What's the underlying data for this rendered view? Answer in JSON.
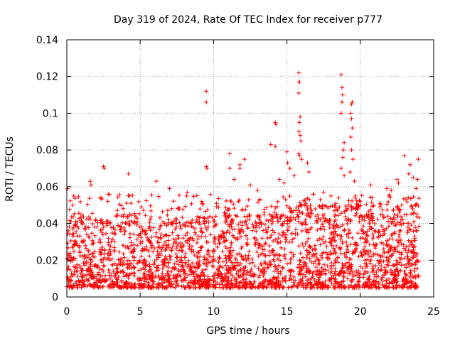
{
  "chart_data": {
    "type": "scatter",
    "title": "Day 319 of 2024, Rate Of TEC Index for receiver p777",
    "xlabel": "GPS time / hours",
    "ylabel": "ROTI / TECUs",
    "xlim": [
      0,
      25
    ],
    "ylim": [
      0,
      0.14
    ],
    "x_ticks": [
      0,
      5,
      10,
      15,
      20,
      25
    ],
    "x_tick_labels": [
      "0",
      "5",
      "10",
      "15",
      "20",
      "25"
    ],
    "y_ticks": [
      0,
      0.02,
      0.04,
      0.06,
      0.08,
      0.1,
      0.12,
      0.14
    ],
    "y_tick_labels": [
      "0",
      "0.02",
      "0.04",
      "0.06",
      "0.08",
      "0.1",
      "0.12",
      "0.14"
    ],
    "grid": true,
    "marker": "+",
    "marker_color": "#ff0000",
    "series": [
      {
        "name": "ROTI",
        "base_range": [
          0.005,
          0.045
        ],
        "gaps_hours": [
          [
            4.7,
            4.75
          ],
          [
            6.0,
            6.05
          ],
          [
            8.8,
            8.85
          ],
          [
            9.8,
            9.9
          ],
          [
            14.6,
            14.65
          ],
          [
            17.8,
            17.85
          ],
          [
            22.0,
            22.05
          ]
        ],
        "points": [
          [
            0.05,
            0.059
          ],
          [
            0.4,
            0.05
          ],
          [
            1.6,
            0.063
          ],
          [
            1.65,
            0.061
          ],
          [
            2.5,
            0.071
          ],
          [
            2.55,
            0.07
          ],
          [
            4.2,
            0.067
          ],
          [
            6.1,
            0.063
          ],
          [
            7.0,
            0.059
          ],
          [
            8.2,
            0.057
          ],
          [
            9.5,
            0.112
          ],
          [
            9.5,
            0.106
          ],
          [
            9.5,
            0.071
          ],
          [
            9.55,
            0.07
          ],
          [
            11.1,
            0.078
          ],
          [
            11.1,
            0.07
          ],
          [
            11.4,
            0.064
          ],
          [
            11.8,
            0.072
          ],
          [
            11.8,
            0.07
          ],
          [
            12.1,
            0.075
          ],
          [
            12.5,
            0.061
          ],
          [
            13.0,
            0.058
          ],
          [
            13.9,
            0.083
          ],
          [
            14.2,
            0.095
          ],
          [
            14.25,
            0.094
          ],
          [
            14.2,
            0.082
          ],
          [
            14.5,
            0.064
          ],
          [
            14.8,
            0.062
          ],
          [
            15.0,
            0.079
          ],
          [
            15.05,
            0.073
          ],
          [
            15.2,
            0.07
          ],
          [
            15.5,
            0.066
          ],
          [
            15.8,
            0.122
          ],
          [
            15.82,
            0.117
          ],
          [
            15.85,
            0.117
          ],
          [
            15.8,
            0.111
          ],
          [
            15.9,
            0.098
          ],
          [
            15.85,
            0.095
          ],
          [
            15.82,
            0.09
          ],
          [
            15.9,
            0.088
          ],
          [
            15.95,
            0.085
          ],
          [
            15.8,
            0.078
          ],
          [
            15.85,
            0.077
          ],
          [
            16.0,
            0.075
          ],
          [
            16.4,
            0.073
          ],
          [
            16.5,
            0.068
          ],
          [
            16.8,
            0.056
          ],
          [
            17.5,
            0.057
          ],
          [
            18.0,
            0.055
          ],
          [
            18.7,
            0.121
          ],
          [
            18.75,
            0.114
          ],
          [
            18.8,
            0.11
          ],
          [
            18.75,
            0.106
          ],
          [
            18.7,
            0.1
          ],
          [
            18.9,
            0.084
          ],
          [
            18.85,
            0.08
          ],
          [
            18.8,
            0.076
          ],
          [
            18.7,
            0.07
          ],
          [
            18.9,
            0.066
          ],
          [
            19.4,
            0.105
          ],
          [
            19.45,
            0.106
          ],
          [
            19.35,
            0.1
          ],
          [
            19.4,
            0.097
          ],
          [
            19.45,
            0.092
          ],
          [
            19.35,
            0.087
          ],
          [
            19.4,
            0.08
          ],
          [
            19.5,
            0.075
          ],
          [
            19.3,
            0.068
          ],
          [
            19.6,
            0.063
          ],
          [
            20.7,
            0.061
          ],
          [
            21.8,
            0.059
          ],
          [
            22.1,
            0.058
          ],
          [
            22.5,
            0.064
          ],
          [
            22.6,
            0.062
          ],
          [
            23.0,
            0.077
          ],
          [
            23.3,
            0.067
          ],
          [
            23.4,
            0.072
          ],
          [
            23.6,
            0.065
          ],
          [
            23.8,
            0.059
          ],
          [
            23.9,
            0.064
          ],
          [
            23.95,
            0.075
          ]
        ]
      }
    ]
  }
}
